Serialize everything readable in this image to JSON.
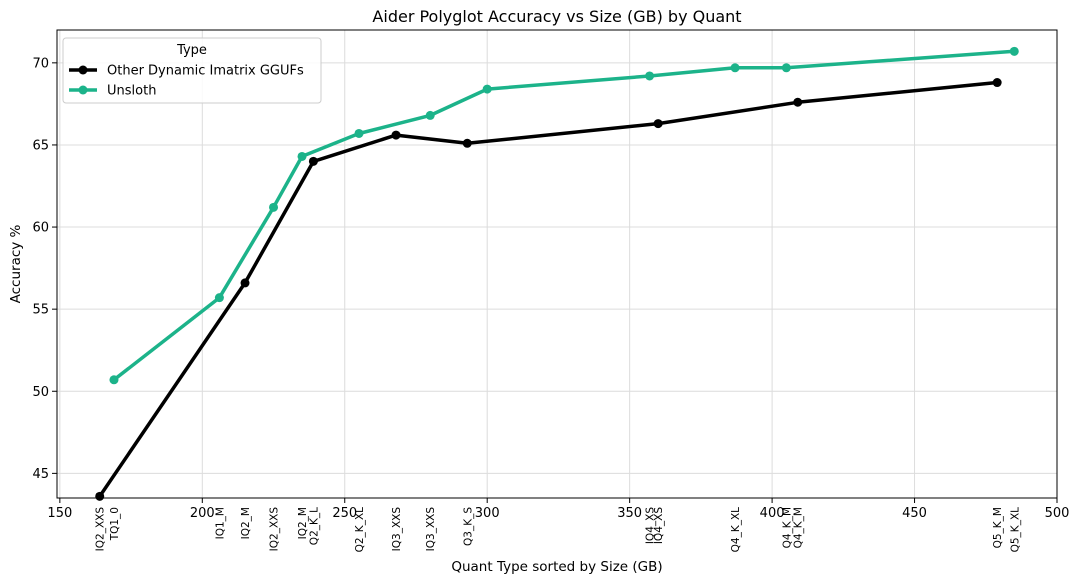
{
  "chart_data": {
    "type": "line",
    "title": "Aider Polyglot Accuracy vs Size (GB) by Quant",
    "xlabel": "Quant Type sorted by Size (GB)",
    "ylabel": "Accuracy %",
    "xlim": [
      149,
      500
    ],
    "ylim": [
      43.5,
      72.0
    ],
    "x_ticks": [
      150,
      200,
      250,
      300,
      350,
      400,
      450,
      500
    ],
    "y_ticks": [
      45,
      50,
      55,
      60,
      65,
      70
    ],
    "grid": true,
    "legend": {
      "title": "Type",
      "position": "top-left"
    },
    "series": [
      {
        "name": "Other Dynamic Imatrix GGUFs",
        "color": "#000000",
        "points": [
          {
            "x": 164,
            "y": 43.6
          },
          {
            "x": 215,
            "y": 56.6
          },
          {
            "x": 239,
            "y": 64.0
          },
          {
            "x": 268,
            "y": 65.6
          },
          {
            "x": 293,
            "y": 65.1
          },
          {
            "x": 360,
            "y": 66.3
          },
          {
            "x": 409,
            "y": 67.6
          },
          {
            "x": 479,
            "y": 68.8
          }
        ]
      },
      {
        "name": "Unsloth",
        "color": "#1cb38a",
        "points": [
          {
            "x": 169,
            "y": 50.7
          },
          {
            "x": 206,
            "y": 55.7
          },
          {
            "x": 225,
            "y": 61.2
          },
          {
            "x": 235,
            "y": 64.3
          },
          {
            "x": 255,
            "y": 65.7
          },
          {
            "x": 280,
            "y": 66.8
          },
          {
            "x": 300,
            "y": 68.4
          },
          {
            "x": 357,
            "y": 69.2
          },
          {
            "x": 387,
            "y": 69.7
          },
          {
            "x": 405,
            "y": 69.7
          },
          {
            "x": 485,
            "y": 70.7
          }
        ]
      }
    ],
    "quant_labels": [
      {
        "x": 164,
        "label": "IQ2_XXS"
      },
      {
        "x": 169,
        "label": "TQ1_0"
      },
      {
        "x": 206,
        "label": "IQ1_M"
      },
      {
        "x": 215,
        "label": "IQ2_M"
      },
      {
        "x": 225,
        "label": "IQ2_XXS"
      },
      {
        "x": 235,
        "label": "IQ2_M"
      },
      {
        "x": 239,
        "label": "Q2_K_L"
      },
      {
        "x": 255,
        "label": "Q2_K_XL"
      },
      {
        "x": 268,
        "label": "IQ3_XXS"
      },
      {
        "x": 280,
        "label": "IQ3_XXS"
      },
      {
        "x": 293,
        "label": "Q3_K_S"
      },
      {
        "x": 357,
        "label": "IQ4_XS"
      },
      {
        "x": 360,
        "label": "IQ4_XS"
      },
      {
        "x": 387,
        "label": "Q4_K_XL"
      },
      {
        "x": 405,
        "label": "Q4_K_M"
      },
      {
        "x": 409,
        "label": "Q4_K_M"
      },
      {
        "x": 479,
        "label": "Q5_K_M"
      },
      {
        "x": 485,
        "label": "Q5_K_XL"
      }
    ]
  }
}
